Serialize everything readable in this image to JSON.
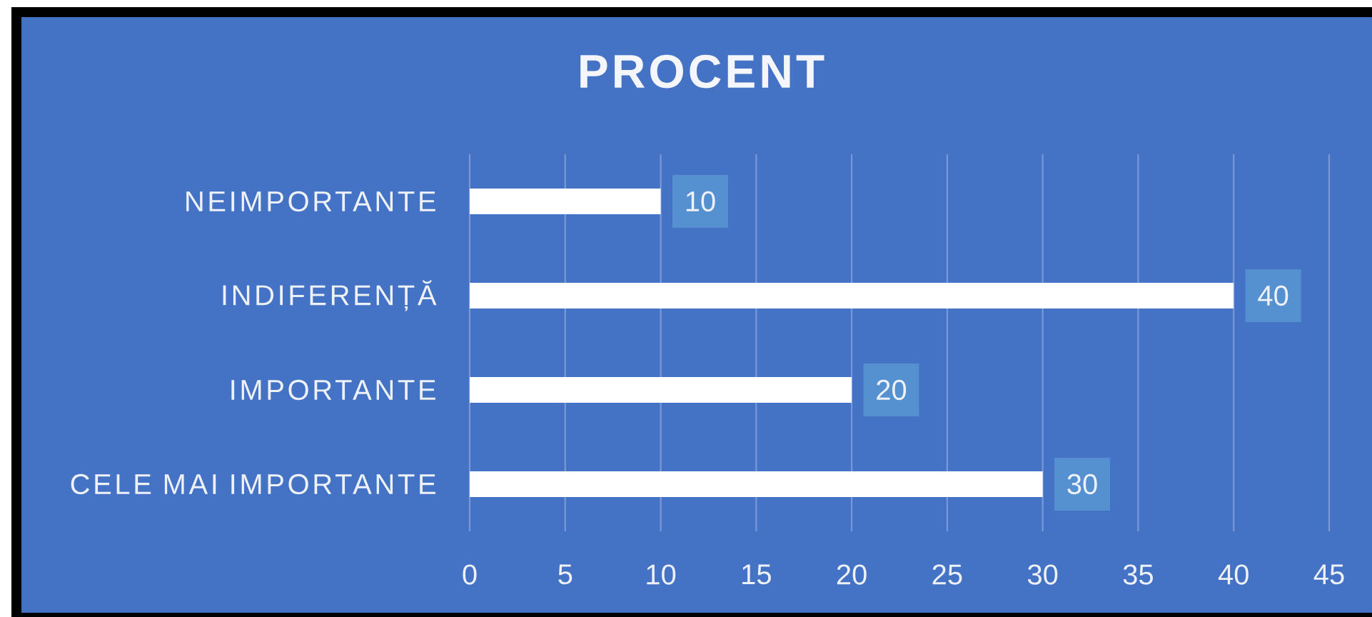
{
  "chart_data": {
    "type": "bar",
    "orientation": "horizontal",
    "title": "PROCENT",
    "categories": [
      "NEIMPORTANTE",
      "INDIFERENȚĂ",
      "IMPORTANTE",
      "CELE MAI IMPORTANTE"
    ],
    "values": [
      10,
      40,
      20,
      30
    ],
    "color": "#ffffff",
    "xlim": [
      0,
      45
    ],
    "xticks": [
      0,
      5,
      10,
      15,
      20,
      25,
      30,
      35,
      40,
      45
    ],
    "grid": "x",
    "data_labels": true
  }
}
